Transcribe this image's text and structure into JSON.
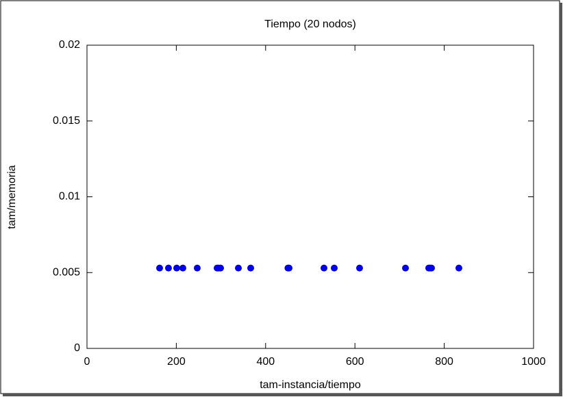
{
  "chart_data": {
    "type": "scatter",
    "title": "Tiempo (20 nodos)",
    "x_label": "tam-instancia/tiempo",
    "y_label": "tam/memoria",
    "series": [
      {
        "color": "#0000ee",
        "x": [
          162.6,
          182.5,
          200.9,
          214.7,
          246.9,
          291.4,
          294.5,
          299.1,
          339,
          366.6,
          450,
          452.5,
          530.7,
          553.7,
          610.4,
          713.2,
          765.3,
          768,
          771.5,
          832.8
        ],
        "y": [
          0.0053,
          0.0053,
          0.0053,
          0.0053,
          0.0053,
          0.0053,
          0.0053,
          0.0053,
          0.0053,
          0.0053,
          0.0053,
          0.0053,
          0.0053,
          0.0053,
          0.0053,
          0.0053,
          0.0053,
          0.0053,
          0.0053,
          0.0053
        ]
      }
    ],
    "xlim": [
      0,
      1000
    ],
    "xticks": [
      0,
      200,
      400,
      600,
      800,
      1000
    ],
    "ylim": [
      0,
      0.02
    ],
    "yticks": [
      0,
      0.005,
      0.01,
      0.015,
      0.02
    ]
  }
}
